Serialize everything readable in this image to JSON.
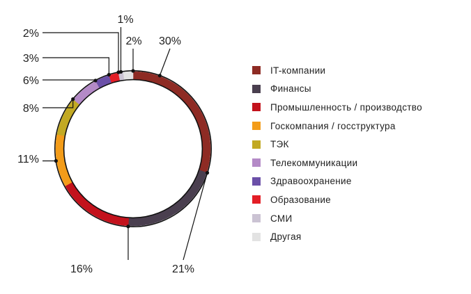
{
  "chart_data": {
    "type": "pie",
    "variant": "donut",
    "title": "",
    "slices": [
      {
        "label": "IT-компании",
        "value": 30,
        "value_label": "30%",
        "color": "#8e2b24"
      },
      {
        "label": "Финансы",
        "value": 21,
        "value_label": "21%",
        "color": "#4a3f4f"
      },
      {
        "label": "Промышленность / производство",
        "value": 16,
        "value_label": "16%",
        "color": "#c3121c"
      },
      {
        "label": "Госкомпания / госструктура",
        "value": 11,
        "value_label": "11%",
        "color": "#f39c19"
      },
      {
        "label": "ТЭК",
        "value": 8,
        "value_label": "8%",
        "color": "#c2a923"
      },
      {
        "label": "Телекоммуникации",
        "value": 6,
        "value_label": "6%",
        "color": "#b48ac7"
      },
      {
        "label": "Здравоохранение",
        "value": 3,
        "value_label": "3%",
        "color": "#6b50a8"
      },
      {
        "label": "Образование",
        "value": 2,
        "value_label": "2%",
        "color": "#e31e26"
      },
      {
        "label": "СМИ",
        "value": 1,
        "value_label": "1%",
        "color": "#cbc3d3"
      },
      {
        "label": "Другая",
        "value": 2,
        "value_label": "2%",
        "color": "#e3e3e3"
      }
    ],
    "legend_position": "right"
  }
}
